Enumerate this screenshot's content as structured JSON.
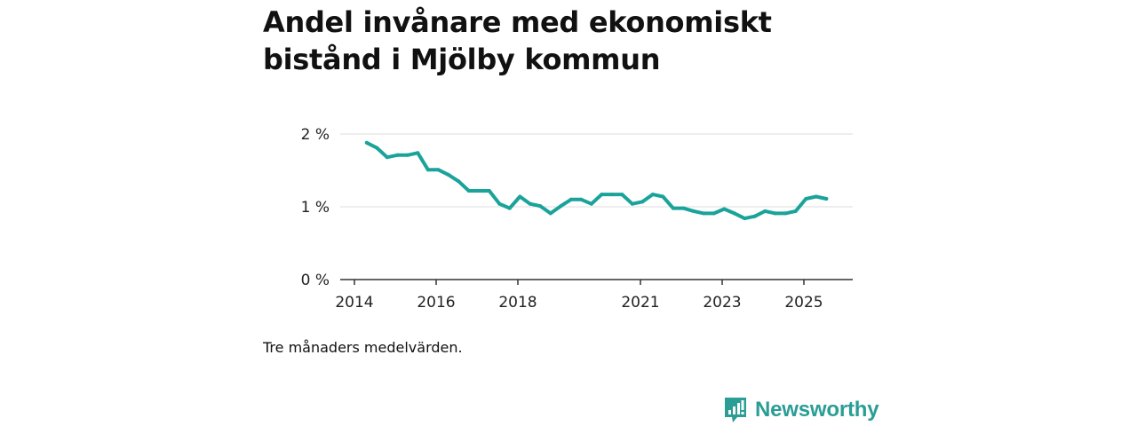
{
  "title": "Andel invånare med ekonomiskt bistånd i Mjölby kommun",
  "caption": "Tre månaders medelvärden.",
  "brand": {
    "name": "Newsworthy",
    "icon": "newsworthy-logo-icon"
  },
  "colors": {
    "line": "#1aa39a",
    "grid": "#dddddd",
    "axis": "#333333",
    "brand": "#2a9d94"
  },
  "chart_data": {
    "type": "line",
    "title": "Andel invånare med ekonomiskt bistånd i Mjölby kommun",
    "xlabel": "",
    "ylabel": "",
    "y_ticks": [
      {
        "value": 0,
        "label": "0 %"
      },
      {
        "value": 1,
        "label": "1 %"
      },
      {
        "value": 2,
        "label": "2 %"
      }
    ],
    "x_ticks": [
      {
        "value": 2014,
        "label": "2014"
      },
      {
        "value": 2016,
        "label": "2016"
      },
      {
        "value": 2018,
        "label": "2018"
      },
      {
        "value": 2021,
        "label": "2021"
      },
      {
        "value": 2023,
        "label": "2023"
      },
      {
        "value": 2025,
        "label": "2025"
      }
    ],
    "xlim": [
      2014,
      2025.8
    ],
    "ylim": [
      0,
      2.0
    ],
    "grid": true,
    "series": [
      {
        "name": "Andel invånare med ekonomiskt bistånd",
        "x": [
          2014.3,
          2014.55,
          2014.8,
          2015.05,
          2015.3,
          2015.55,
          2015.8,
          2016.05,
          2016.3,
          2016.55,
          2016.8,
          2017.05,
          2017.3,
          2017.55,
          2017.8,
          2018.05,
          2018.3,
          2018.55,
          2018.8,
          2019.05,
          2019.3,
          2019.55,
          2019.8,
          2020.05,
          2020.3,
          2020.55,
          2020.8,
          2021.05,
          2021.3,
          2021.55,
          2021.8,
          2022.05,
          2022.3,
          2022.55,
          2022.8,
          2023.05,
          2023.3,
          2023.55,
          2023.8,
          2024.05,
          2024.3,
          2024.55,
          2024.8,
          2025.05,
          2025.3,
          2025.55
        ],
        "values": [
          1.88,
          1.81,
          1.68,
          1.71,
          1.71,
          1.74,
          1.51,
          1.51,
          1.44,
          1.35,
          1.22,
          1.22,
          1.22,
          1.04,
          0.98,
          1.14,
          1.04,
          1.01,
          0.91,
          1.01,
          1.1,
          1.1,
          1.04,
          1.17,
          1.17,
          1.17,
          1.04,
          1.07,
          1.17,
          1.14,
          0.98,
          0.98,
          0.94,
          0.91,
          0.91,
          0.97,
          0.91,
          0.84,
          0.87,
          0.94,
          0.91,
          0.91,
          0.94,
          1.11,
          1.14,
          1.11
        ]
      }
    ]
  }
}
